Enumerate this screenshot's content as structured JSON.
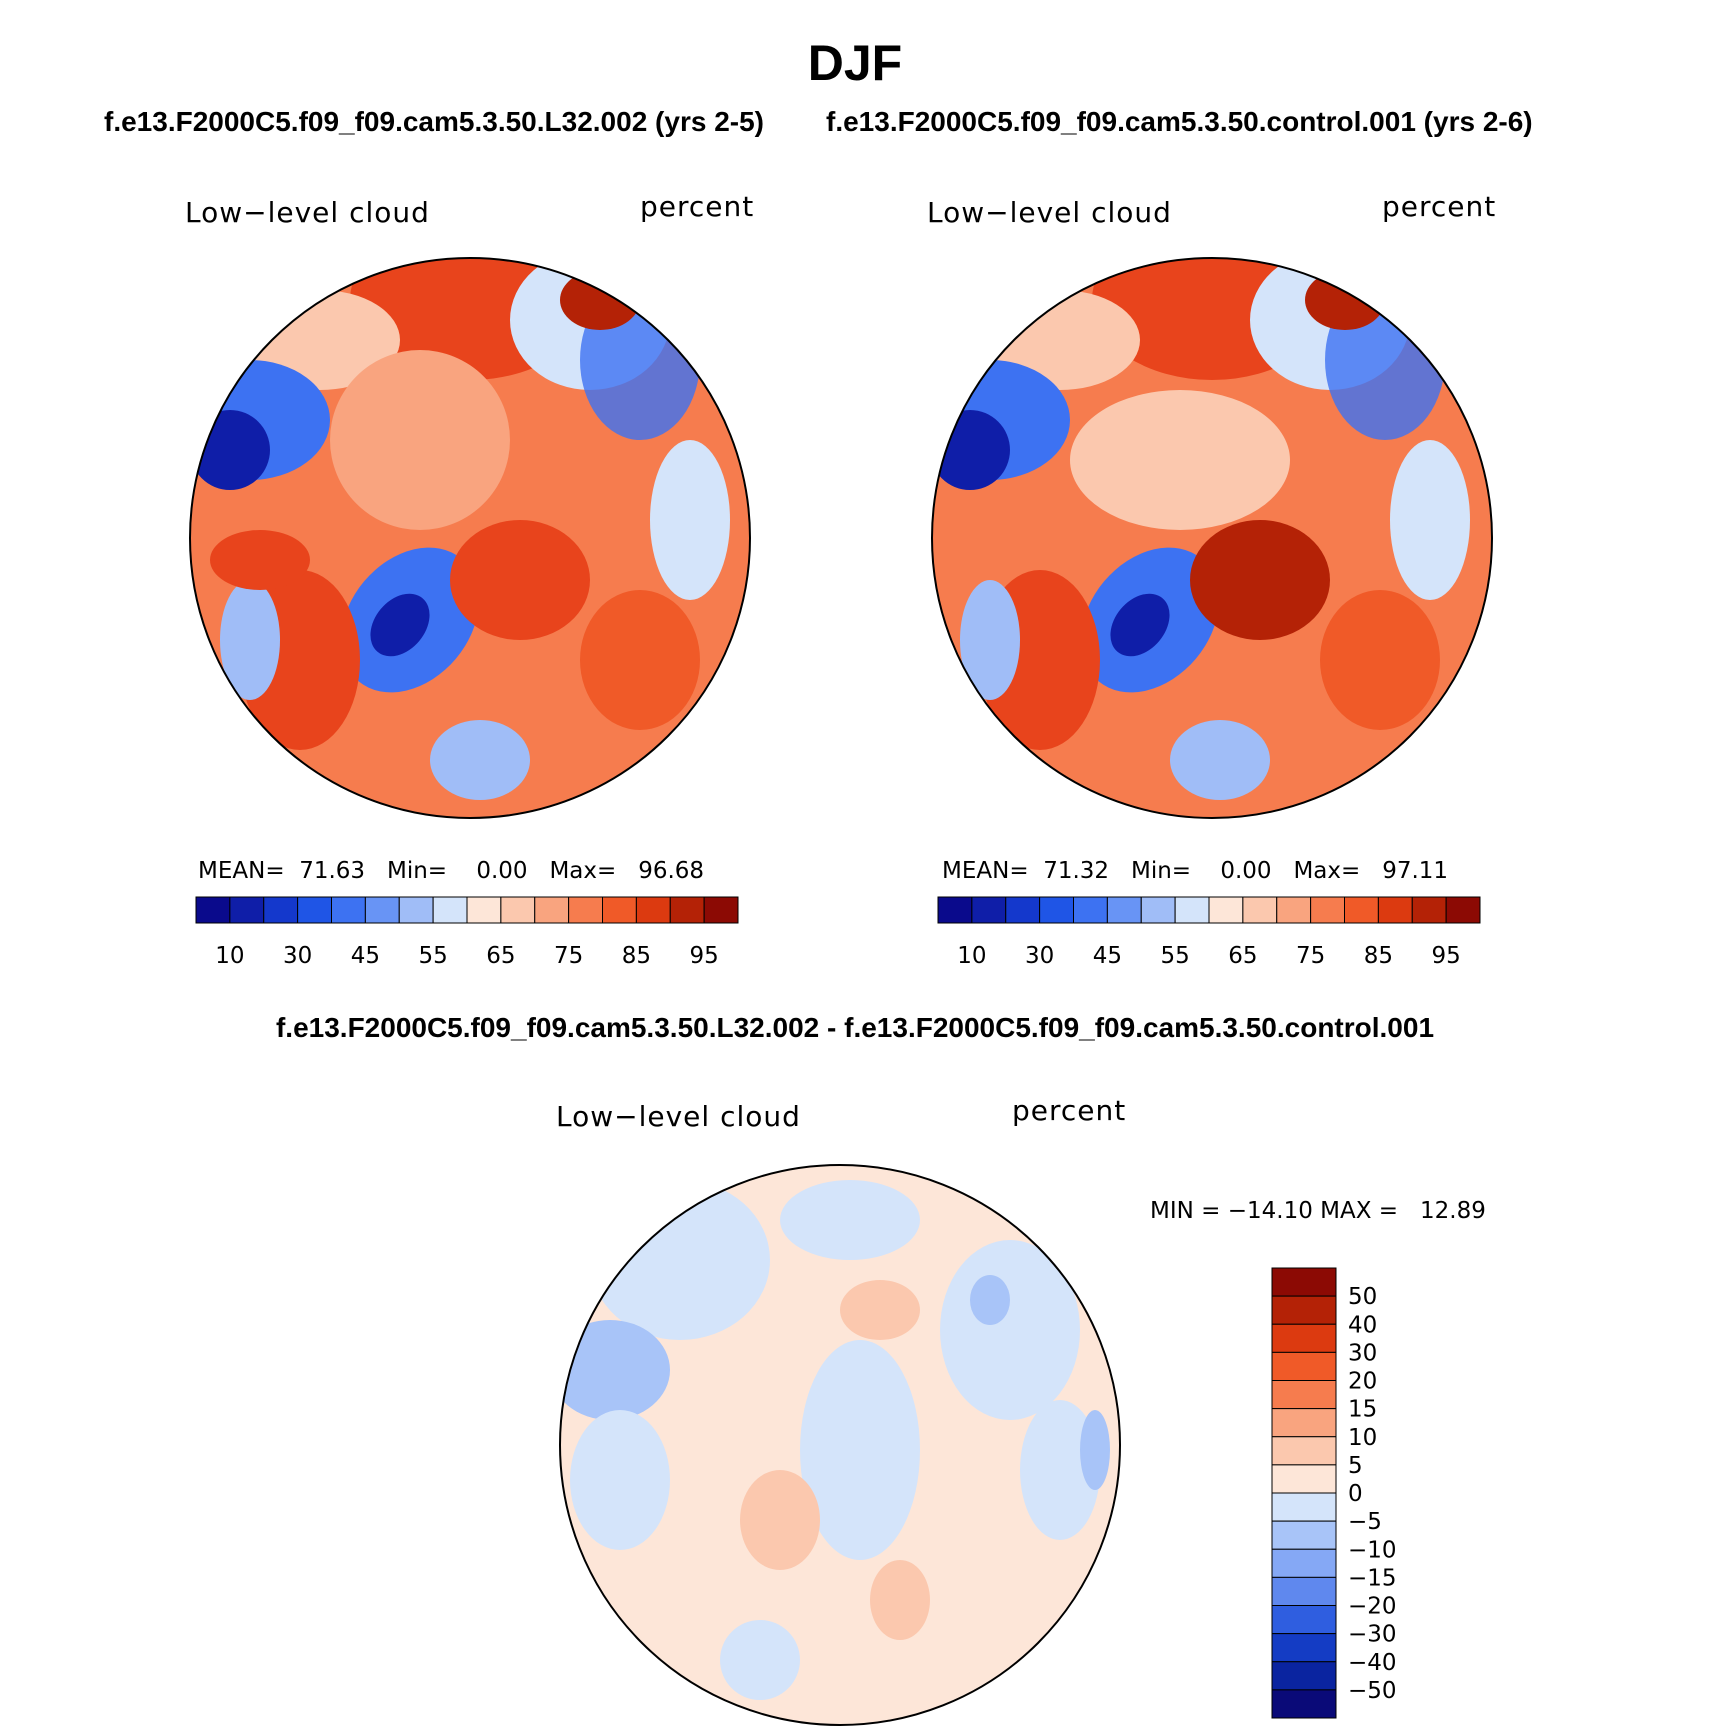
{
  "figure": {
    "title": "DJF",
    "case_a_title": "f.e13.F2000C5.f09_f09.cam5.3.50.L32.002 (yrs 2-5)",
    "case_b_title": "f.e13.F2000C5.f09_f09.cam5.3.50.control.001 (yrs 2-6)",
    "diff_title": "f.e13.F2000C5.f09_f09.cam5.3.50.L32.002 - f.e13.F2000C5.f09_f09.cam5.3.50.control.001"
  },
  "panels": [
    {
      "variable": "Low−level cloud",
      "units": "percent",
      "stats": "MEAN=  71.63   Min=    0.00   Max=   96.68"
    },
    {
      "variable": "Low−level cloud",
      "units": "percent",
      "stats": "MEAN=  71.32   Min=    0.00   Max=   97.11"
    },
    {
      "variable": "Low−level cloud",
      "units": "percent",
      "stats": "MIN = −14.10 MAX =   12.89"
    }
  ],
  "colorbar_abs": {
    "colors": [
      "#0a0a8c",
      "#0f1ea8",
      "#1438cc",
      "#1f55e6",
      "#3d72f2",
      "#6894f5",
      "#a0bdf7",
      "#d4e4fa",
      "#fde6d8",
      "#fbc8ae",
      "#f9a47f",
      "#f67c4e",
      "#f05a28",
      "#dc3a10",
      "#b42206",
      "#8c0a04"
    ],
    "labels": [
      "10",
      "30",
      "45",
      "55",
      "65",
      "75",
      "85",
      "95"
    ]
  },
  "colorbar_diff": {
    "colors": [
      "#8c0a04",
      "#b42206",
      "#dc3a10",
      "#f05a28",
      "#f67c4e",
      "#f9a47f",
      "#fbc8ae",
      "#fde6d8",
      "#d4e4fa",
      "#a8c4f8",
      "#85a8f5",
      "#5f88ee",
      "#2f5ee0",
      "#143cc4",
      "#0a24a0",
      "#0a0a78"
    ],
    "labels": [
      "50",
      "40",
      "30",
      "20",
      "15",
      "10",
      "5",
      "0",
      "−5",
      "−10",
      "−15",
      "−20",
      "−30",
      "−40",
      "−50"
    ]
  },
  "map_colors": {
    "deep_red": "#b42206",
    "red": "#e8441c",
    "orange": "#f67c4e",
    "salmon": "#f9a47f",
    "peach": "#fbc8ae",
    "cream": "#fde6d8",
    "pale_blue": "#d4e4fa",
    "light_blue": "#a0bdf7",
    "blue": "#3d72f2",
    "dark_blue": "#0f1ea8"
  }
}
